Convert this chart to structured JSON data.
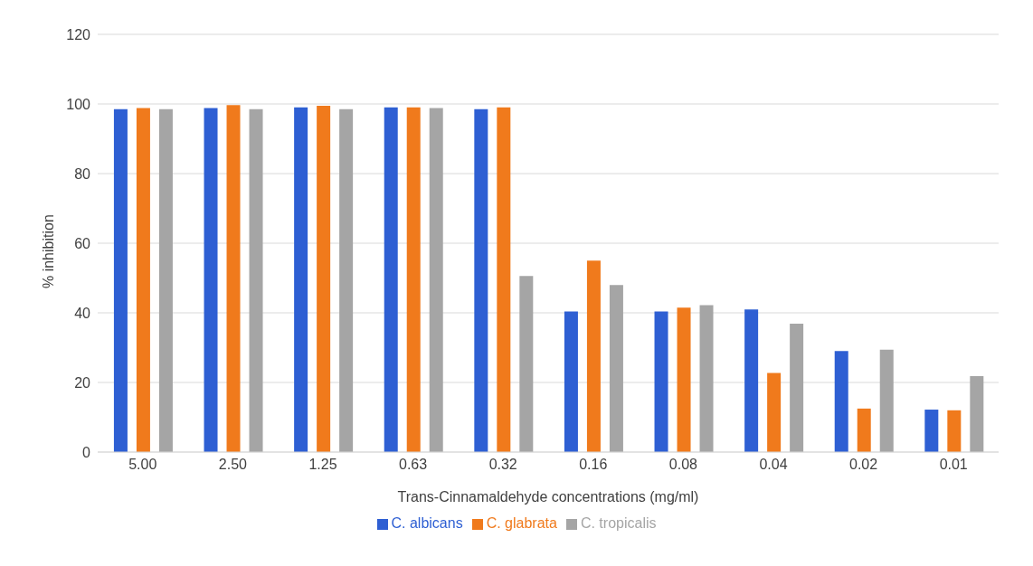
{
  "chart_data": {
    "type": "bar",
    "xlabel": "Trans-Cinnamaldehyde concentrations (mg/ml)",
    "ylabel": "% inhibition",
    "categories": [
      "5.00",
      "2.50",
      "1.25",
      "0.63",
      "0.32",
      "0.16",
      "0.08",
      "0.04",
      "0.02",
      "0.01"
    ],
    "series": [
      {
        "name": "C. albicans",
        "color": "#2e5fd3",
        "values": [
          98.5,
          98.8,
          99,
          99,
          98.5,
          40.4,
          40.4,
          41,
          29,
          12.2
        ]
      },
      {
        "name": "C. glabrata",
        "color": "#f07a1c",
        "values": [
          98.8,
          99.7,
          99.5,
          99,
          99,
          55,
          41.5,
          22.7,
          12.5,
          12
        ]
      },
      {
        "name": "C. tropicalis",
        "color": "#a5a5a5",
        "values": [
          98.5,
          98.5,
          98.5,
          98.8,
          50.6,
          48,
          42.2,
          36.9,
          29.4,
          21.8
        ]
      }
    ],
    "ylim": [
      0,
      120
    ],
    "yticks": [
      0,
      20,
      40,
      60,
      80,
      100,
      120
    ],
    "grid": "y",
    "legend": "bottom"
  }
}
